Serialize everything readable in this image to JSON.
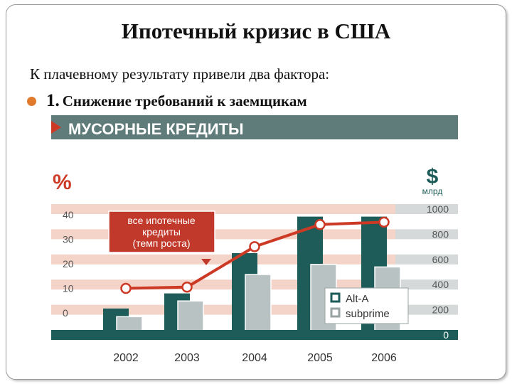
{
  "slide": {
    "title": "Ипотечный кризис в США",
    "intro": "К плачевному результату привели два фактора:",
    "bullet_number": "1.",
    "bullet_text": "Снижение требований к заемщикам"
  },
  "chart_data": {
    "type": "bar",
    "title": "МУСОРНЫЕ КРЕДИТЫ",
    "categories": [
      "2002",
      "2003",
      "2004",
      "2005",
      "2006"
    ],
    "left_axis": {
      "label": "%",
      "ticks": [
        "0",
        "10",
        "20",
        "30",
        "40"
      ],
      "range": [
        -10,
        40
      ]
    },
    "right_axis": {
      "label_symbol": "$",
      "label_unit": "млрд",
      "ticks": [
        "0",
        "200",
        "400",
        "600",
        "800",
        "1000"
      ],
      "range": [
        0,
        1000
      ]
    },
    "series": [
      {
        "name": "Alt-A",
        "axis": "right",
        "color": "#1d5c58",
        "values": [
          210,
          330,
          650,
          940,
          940
        ]
      },
      {
        "name": "subprime",
        "axis": "right",
        "color": "#b9c2c2",
        "values": [
          145,
          270,
          480,
          560,
          540
        ]
      }
    ],
    "line_series": {
      "axis": "left",
      "color": "#cc3a26",
      "values": [
        10,
        10.5,
        27,
        36,
        37
      ]
    },
    "callout": [
      "все ипотечные",
      "кредиты",
      "(темп роста)"
    ],
    "colors": {
      "banner": "#5f7c7b",
      "band": "#f4d4c9",
      "band_right": "#d5d9d9",
      "baseline": "#1d5c58"
    }
  }
}
